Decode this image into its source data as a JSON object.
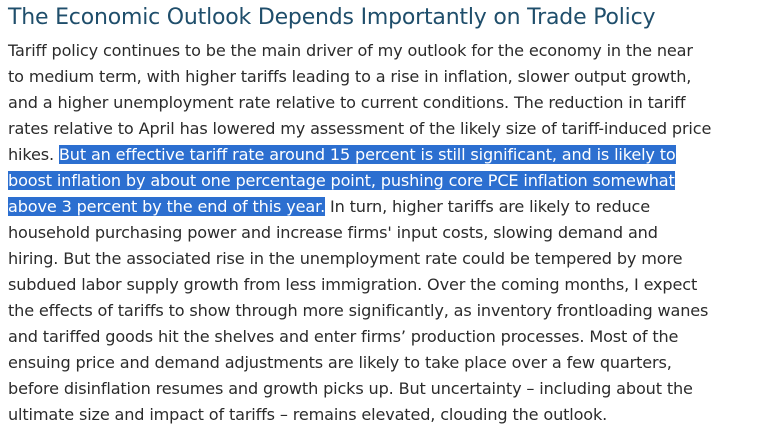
{
  "heading": "The Economic Outlook Depends Importantly on Trade Policy",
  "colors": {
    "heading": "#1f4e6b",
    "text": "#2b2b2b",
    "selection": "#2c6fd0"
  },
  "paragraph": {
    "l1": "Tariff policy continues to be the main driver of my outlook for the economy in the near",
    "l2": "to medium term, with higher tariffs leading to a rise in inflation, slower output growth,",
    "l3": "and a higher unemployment rate relative to current conditions. The reduction in tariff",
    "l4": "rates relative to April has lowered my assessment of the likely size of tariff-induced price",
    "l5_pre": "hikes. ",
    "l5_sel": "But an effective tariff rate around 15 percent is still significant, and is likely to",
    "l6_sel": "boost inflation by about one percentage point, pushing core PCE inflation somewhat",
    "l7_sel": "above 3 percent by the end of this year.",
    "l7_post": " In turn, higher tariffs are likely to reduce",
    "l8": "household purchasing power and increase firms' input costs, slowing demand and",
    "l9": "hiring. But the associated rise in the unemployment rate could be tempered by more",
    "l10": "subdued labor supply growth from less immigration. Over the coming months, I expect",
    "l11": "the effects of tariffs to show through more significantly, as inventory frontloading wanes",
    "l12": "and tariffed goods hit the shelves and enter firms’ production processes. Most of the",
    "l13": "ensuing price and demand adjustments are likely to take place over a few quarters,",
    "l14": "before disinflation resumes and growth picks up. But uncertainty – including about the",
    "l15": "ultimate size and impact of tariffs – remains elevated, clouding the outlook."
  }
}
